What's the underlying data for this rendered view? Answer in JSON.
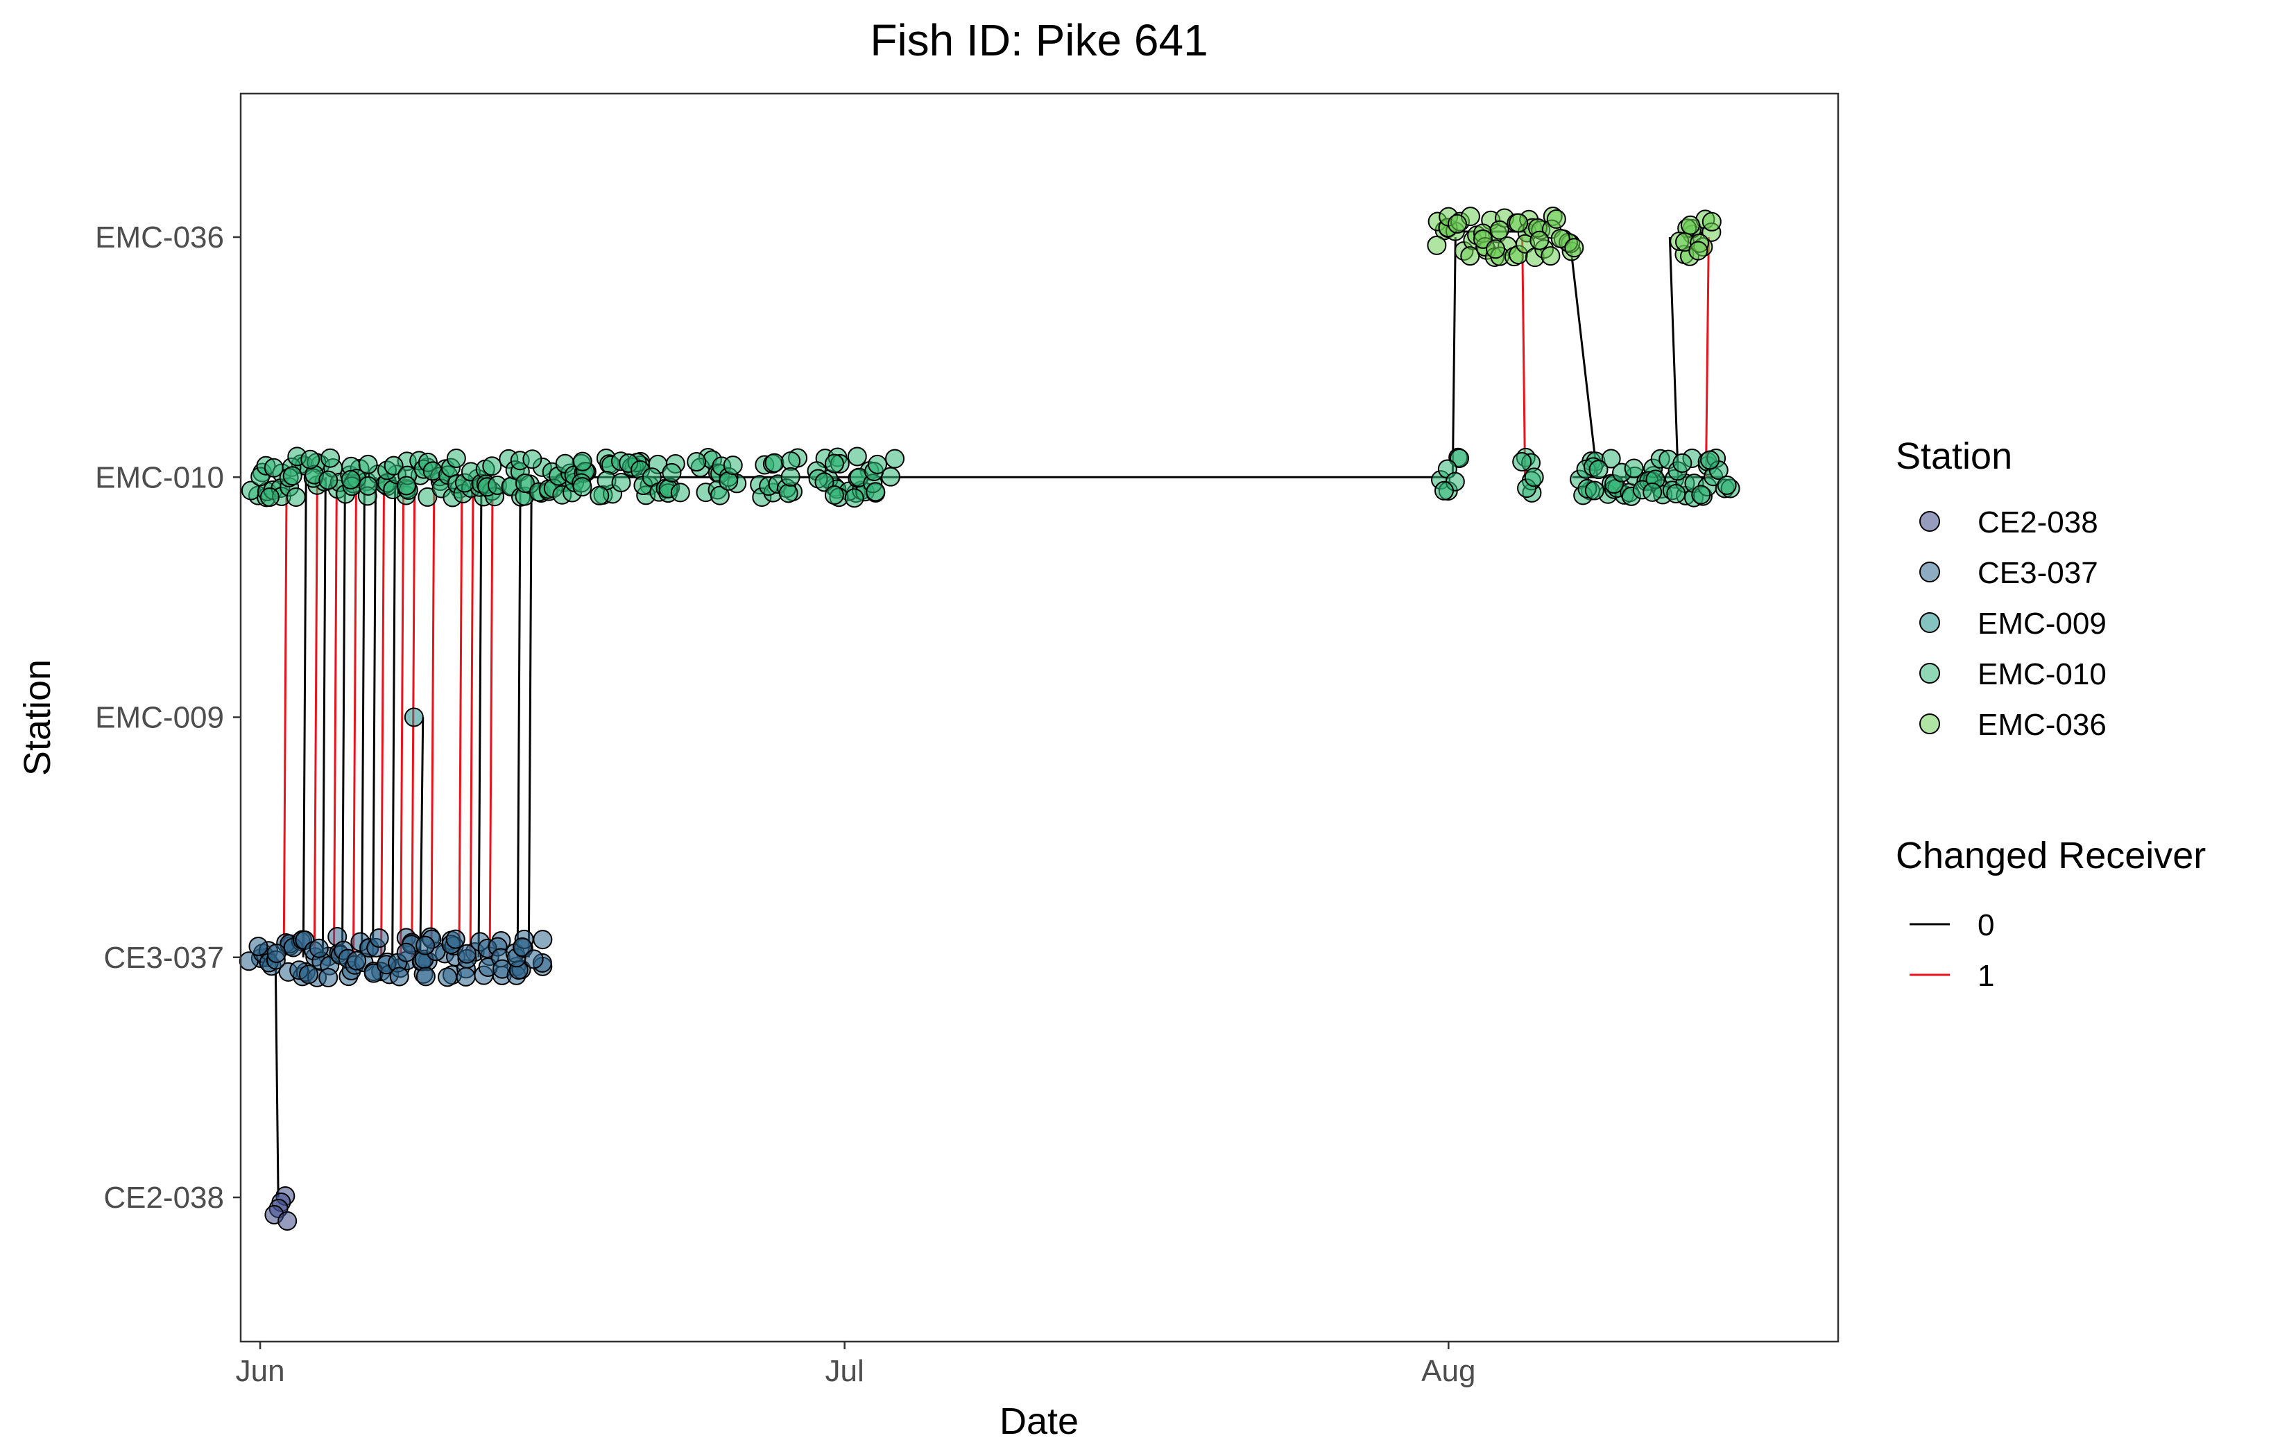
{
  "chart_data": {
    "type": "scatter",
    "title": "Fish ID: Pike 641",
    "xlabel": "Date",
    "ylabel": "Station",
    "x_axis": {
      "type": "date",
      "range": [
        "2021-05-31",
        "2021-08-21"
      ],
      "ticks": [
        {
          "value": "2021-06-01",
          "label": "Jun"
        },
        {
          "value": "2021-07-01",
          "label": "Jul"
        },
        {
          "value": "2021-08-01",
          "label": "Aug"
        }
      ]
    },
    "y_axis": {
      "type": "categorical",
      "categories": [
        "CE2-038",
        "CE3-037",
        "EMC-009",
        "EMC-010",
        "EMC-036"
      ]
    },
    "grid": false,
    "legend_position": "right",
    "station_legend": {
      "title": "Station",
      "entries": [
        {
          "label": "CE2-038",
          "color": "#3e4a89"
        },
        {
          "label": "CE3-037",
          "color": "#31688e"
        },
        {
          "label": "EMC-009",
          "color": "#21918c"
        },
        {
          "label": "EMC-010",
          "color": "#35b779"
        },
        {
          "label": "EMC-036",
          "color": "#6ece58"
        }
      ]
    },
    "changed_receiver_legend": {
      "title": "Changed Receiver",
      "entries": [
        {
          "label": "0",
          "color": "#000000"
        },
        {
          "label": "1",
          "color": "#e8141b"
        }
      ]
    },
    "detection_clusters": [
      {
        "station": "CE2-038",
        "dates": [
          "2021-06-02"
        ]
      },
      {
        "station": "CE3-037",
        "dates": [
          "2021-06-01",
          "2021-06-02",
          "2021-06-03",
          "2021-06-04",
          "2021-06-05",
          "2021-06-06",
          "2021-06-07",
          "2021-06-08",
          "2021-06-09",
          "2021-06-10",
          "2021-06-11",
          "2021-06-12",
          "2021-06-13",
          "2021-06-14",
          "2021-06-15"
        ]
      },
      {
        "station": "EMC-009",
        "dates": [
          "2021-06-09"
        ]
      },
      {
        "station": "EMC-010",
        "dates": [
          "2021-06-01",
          "2021-06-02",
          "2021-06-03",
          "2021-06-04",
          "2021-06-05",
          "2021-06-06",
          "2021-06-07",
          "2021-06-08",
          "2021-06-09",
          "2021-06-10",
          "2021-06-11",
          "2021-06-12",
          "2021-06-13",
          "2021-06-14",
          "2021-06-15",
          "2021-06-16",
          "2021-06-17",
          "2021-06-18",
          "2021-06-19",
          "2021-06-20",
          "2021-06-21",
          "2021-06-22",
          "2021-06-24",
          "2021-06-25",
          "2021-06-27",
          "2021-06-28",
          "2021-06-30",
          "2021-07-01",
          "2021-07-02",
          "2021-07-03",
          "2021-08-01",
          "2021-08-05",
          "2021-08-08",
          "2021-08-09",
          "2021-08-10",
          "2021-08-11",
          "2021-08-12",
          "2021-08-13",
          "2021-08-14",
          "2021-08-15"
        ]
      },
      {
        "station": "EMC-036",
        "dates": [
          "2021-08-01",
          "2021-08-02",
          "2021-08-03",
          "2021-08-04",
          "2021-08-05",
          "2021-08-06",
          "2021-08-07",
          "2021-08-13",
          "2021-08-14"
        ]
      }
    ],
    "transitions": [
      {
        "date": "2021-06-02",
        "from": "CE3-037",
        "to": "EMC-010",
        "changed": 1
      },
      {
        "date": "2021-06-02",
        "from": "CE3-037",
        "to": "CE2-038",
        "changed": 0
      },
      {
        "date": "2021-06-03",
        "from": "CE3-037",
        "to": "EMC-010",
        "changed": 0
      },
      {
        "date": "2021-06-04",
        "from": "CE3-037",
        "to": "EMC-010",
        "changed": 1
      },
      {
        "date": "2021-06-04",
        "from": "CE3-037",
        "to": "EMC-010",
        "changed": 0
      },
      {
        "date": "2021-06-05",
        "from": "CE3-037",
        "to": "EMC-010",
        "changed": 1
      },
      {
        "date": "2021-06-05",
        "from": "CE3-037",
        "to": "EMC-010",
        "changed": 0
      },
      {
        "date": "2021-06-06",
        "from": "CE3-037",
        "to": "EMC-010",
        "changed": 1
      },
      {
        "date": "2021-06-06",
        "from": "CE3-037",
        "to": "EMC-010",
        "changed": 0
      },
      {
        "date": "2021-06-07",
        "from": "CE3-037",
        "to": "EMC-010",
        "changed": 0
      },
      {
        "date": "2021-06-07",
        "from": "CE3-037",
        "to": "EMC-010",
        "changed": 1
      },
      {
        "date": "2021-06-08",
        "from": "CE3-037",
        "to": "EMC-010",
        "changed": 0
      },
      {
        "date": "2021-06-08",
        "from": "CE3-037",
        "to": "EMC-010",
        "changed": 1
      },
      {
        "date": "2021-06-09",
        "from": "CE3-037",
        "to": "EMC-010",
        "changed": 1
      },
      {
        "date": "2021-06-09",
        "from": "CE3-037",
        "to": "EMC-009",
        "changed": 0
      },
      {
        "date": "2021-06-10",
        "from": "CE3-037",
        "to": "EMC-010",
        "changed": 1
      },
      {
        "date": "2021-06-11",
        "from": "CE3-037",
        "to": "EMC-010",
        "changed": 1
      },
      {
        "date": "2021-06-12",
        "from": "CE3-037",
        "to": "EMC-010",
        "changed": 1
      },
      {
        "date": "2021-06-12",
        "from": "CE3-037",
        "to": "EMC-010",
        "changed": 0
      },
      {
        "date": "2021-06-13",
        "from": "CE3-037",
        "to": "EMC-010",
        "changed": 1
      },
      {
        "date": "2021-06-14",
        "from": "CE3-037",
        "to": "EMC-010",
        "changed": 0
      },
      {
        "date": "2021-06-15",
        "from": "CE3-037",
        "to": "EMC-010",
        "changed": 0
      },
      {
        "date": "2021-08-01",
        "from": "EMC-010",
        "to": "EMC-036",
        "changed": 0
      },
      {
        "date": "2021-08-05",
        "from": "EMC-036",
        "to": "EMC-010",
        "changed": 1
      },
      {
        "date": "2021-08-07",
        "from": "EMC-036",
        "to": "EMC-010",
        "changed": 0
      },
      {
        "date": "2021-08-13",
        "from": "EMC-010",
        "to": "EMC-036",
        "changed": 0
      },
      {
        "date": "2021-08-14",
        "from": "EMC-010",
        "to": "EMC-036",
        "changed": 1
      }
    ]
  }
}
